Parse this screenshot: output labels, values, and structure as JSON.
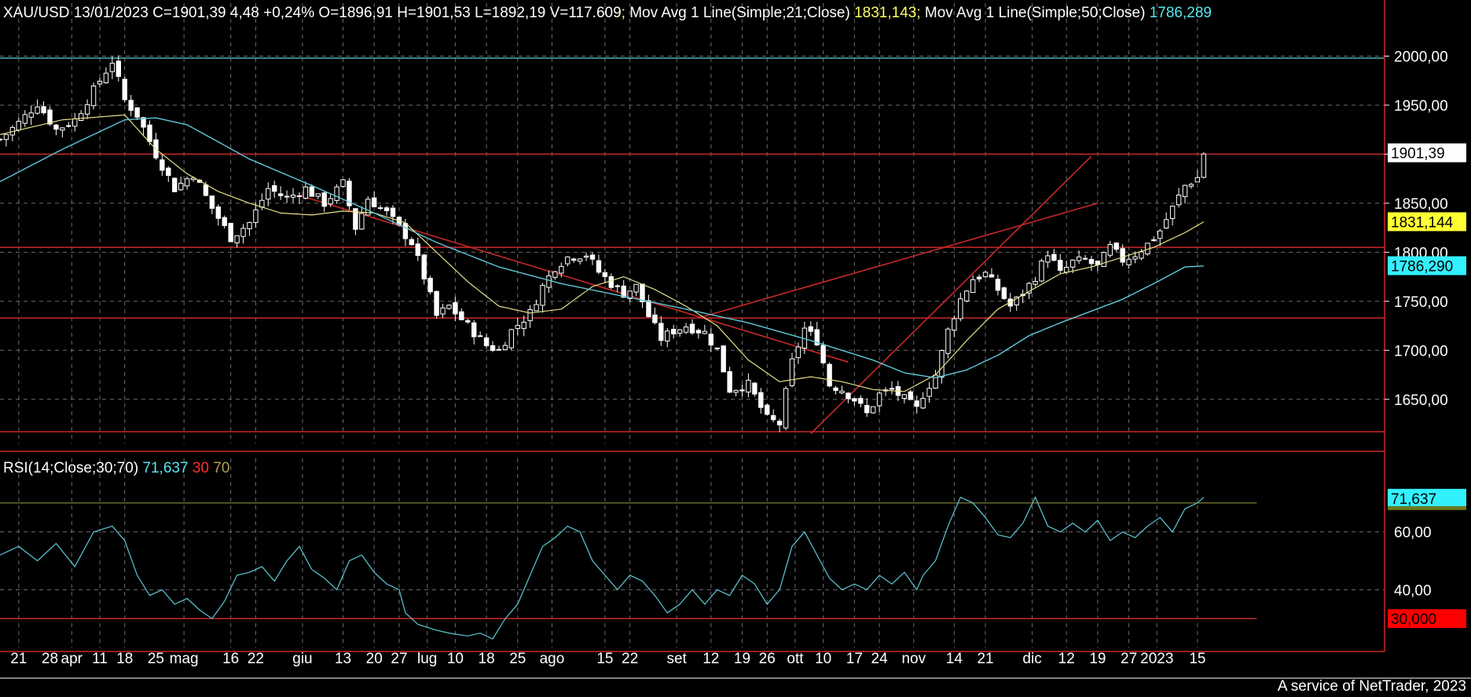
{
  "header": {
    "symbol_text": "XAU/USD 13/01/2023 C=1901,39 4,48 +0,24% O=1896,91 H=1901,53 L=1892,19 V=117.609",
    "sep1": ";",
    "ma21_label": " Mov Avg 1 Line(Simple;21;Close) ",
    "ma21_value": "1831,143",
    "sep2": ";",
    "ma50_label": " Mov Avg 1 Line(Simple;50;Close) ",
    "ma50_value": "1786,289"
  },
  "rsi_header": {
    "label": "RSI(14;Close;30;70) ",
    "value": "71,637",
    "lower": "30",
    "upper": "70"
  },
  "footer": "A service of NetTrader, 2023",
  "colors": {
    "background": "#000000",
    "candle": "#ffffff",
    "ma21": "#e6e08a",
    "ma50": "#5fc8d8",
    "trendline": "#c82828",
    "hline": "#c82828",
    "rsi": "#5fc8d8",
    "grid": "#9a9a9a"
  },
  "price_tags": {
    "close": "1901,39",
    "ma21": "1831,144",
    "ma50": "1786,290",
    "rsi": "71,637",
    "rsi_low": "30,000"
  },
  "chart_data": {
    "type": "candlestick",
    "price_axis": {
      "ylim": [
        1605,
        2030
      ],
      "ticks": [
        1650,
        1700,
        1750,
        1800,
        1850,
        1900,
        1950,
        2000
      ],
      "tick_labels": [
        "1650,00",
        "1700,00",
        "1750,00",
        "1800,00",
        "1850,00",
        "1900,00",
        "1950,00",
        "2000,00"
      ]
    },
    "rsi_axis": {
      "ylim": [
        20,
        80
      ],
      "ticks": [
        40,
        60
      ],
      "tick_labels": [
        "40,00",
        "60,00"
      ]
    },
    "x_axis": {
      "range": [
        0,
        222
      ],
      "labels": [
        {
          "t": 3,
          "label": "21"
        },
        {
          "t": 8,
          "label": "28"
        },
        {
          "t": 11.5,
          "label": "apr"
        },
        {
          "t": 16,
          "label": "11"
        },
        {
          "t": 20,
          "label": "18"
        },
        {
          "t": 25,
          "label": "25"
        },
        {
          "t": 29.5,
          "label": "mag"
        },
        {
          "t": 37,
          "label": "16"
        },
        {
          "t": 41,
          "label": "22"
        },
        {
          "t": 48.5,
          "label": "giu"
        },
        {
          "t": 55,
          "label": "13"
        },
        {
          "t": 60,
          "label": "20"
        },
        {
          "t": 64,
          "label": "27"
        },
        {
          "t": 68.5,
          "label": "lug"
        },
        {
          "t": 73,
          "label": "10"
        },
        {
          "t": 78,
          "label": "18"
        },
        {
          "t": 83,
          "label": "25"
        },
        {
          "t": 88.5,
          "label": "ago"
        },
        {
          "t": 97,
          "label": "15"
        },
        {
          "t": 101,
          "label": "22"
        },
        {
          "t": 108.5,
          "label": "set"
        },
        {
          "t": 114,
          "label": "12"
        },
        {
          "t": 119,
          "label": "19"
        },
        {
          "t": 123,
          "label": "26"
        },
        {
          "t": 127.5,
          "label": "ott"
        },
        {
          "t": 132,
          "label": "10"
        },
        {
          "t": 137,
          "label": "17"
        },
        {
          "t": 141,
          "label": "24"
        },
        {
          "t": 146.5,
          "label": "nov"
        },
        {
          "t": 153,
          "label": "14"
        },
        {
          "t": 158,
          "label": "21"
        },
        {
          "t": 165.5,
          "label": "dic"
        },
        {
          "t": 171,
          "label": "12"
        },
        {
          "t": 176,
          "label": "19"
        },
        {
          "t": 181,
          "label": "27"
        },
        {
          "t": 185.5,
          "label": "2023"
        },
        {
          "t": 192,
          "label": "15"
        }
      ],
      "vgrid": [
        3,
        11.5,
        16,
        20,
        29.5,
        37,
        41,
        48.5,
        55,
        60,
        64,
        68.5,
        73,
        78,
        83,
        88.5,
        97,
        101,
        108.5,
        114,
        119,
        123,
        127.5,
        132,
        137,
        141,
        146.5,
        153,
        158,
        165.5,
        171,
        176,
        181,
        185.5,
        192
      ]
    },
    "price_keypoints": [
      [
        0,
        1915
      ],
      [
        3,
        1932
      ],
      [
        6,
        1952
      ],
      [
        9,
        1925
      ],
      [
        12,
        1935
      ],
      [
        15,
        1965
      ],
      [
        18,
        1995
      ],
      [
        20,
        1955
      ],
      [
        22,
        1940
      ],
      [
        25,
        1900
      ],
      [
        28,
        1865
      ],
      [
        31,
        1880
      ],
      [
        34,
        1845
      ],
      [
        37,
        1815
      ],
      [
        40,
        1830
      ],
      [
        43,
        1865
      ],
      [
        46,
        1855
      ],
      [
        49,
        1865
      ],
      [
        52,
        1850
      ],
      [
        55,
        1870
      ],
      [
        57,
        1825
      ],
      [
        59,
        1855
      ],
      [
        62,
        1840
      ],
      [
        64,
        1825
      ],
      [
        66,
        1810
      ],
      [
        68,
        1775
      ],
      [
        70,
        1735
      ],
      [
        72,
        1745
      ],
      [
        75,
        1725
      ],
      [
        78,
        1705
      ],
      [
        80,
        1700
      ],
      [
        82,
        1720
      ],
      [
        85,
        1738
      ],
      [
        87,
        1765
      ],
      [
        89,
        1785
      ],
      [
        91,
        1795
      ],
      [
        94,
        1798
      ],
      [
        96,
        1780
      ],
      [
        98,
        1768
      ],
      [
        100,
        1758
      ],
      [
        102,
        1765
      ],
      [
        104,
        1735
      ],
      [
        106,
        1712
      ],
      [
        108,
        1720
      ],
      [
        110,
        1725
      ],
      [
        113,
        1718
      ],
      [
        115,
        1700
      ],
      [
        117,
        1660
      ],
      [
        120,
        1665
      ],
      [
        123,
        1630
      ],
      [
        125,
        1625
      ],
      [
        127,
        1688
      ],
      [
        129,
        1722
      ],
      [
        131,
        1710
      ],
      [
        133,
        1665
      ],
      [
        135,
        1660
      ],
      [
        137,
        1650
      ],
      [
        139,
        1635
      ],
      [
        141,
        1655
      ],
      [
        143,
        1660
      ],
      [
        145,
        1650
      ],
      [
        147,
        1640
      ],
      [
        148,
        1655
      ],
      [
        150,
        1675
      ],
      [
        152,
        1720
      ],
      [
        154,
        1752
      ],
      [
        156,
        1773
      ],
      [
        158,
        1778
      ],
      [
        160,
        1762
      ],
      [
        162,
        1745
      ],
      [
        164,
        1758
      ],
      [
        166,
        1775
      ],
      [
        168,
        1800
      ],
      [
        170,
        1778
      ],
      [
        172,
        1790
      ],
      [
        174,
        1792
      ],
      [
        176,
        1785
      ],
      [
        178,
        1805
      ],
      [
        180,
        1792
      ],
      [
        182,
        1798
      ],
      [
        184,
        1808
      ],
      [
        186,
        1822
      ],
      [
        188,
        1845
      ],
      [
        190,
        1868
      ],
      [
        192,
        1876
      ],
      [
        193,
        1901
      ]
    ],
    "ma21_keypoints": [
      [
        0,
        1920
      ],
      [
        10,
        1935
      ],
      [
        20,
        1940
      ],
      [
        25,
        1905
      ],
      [
        30,
        1880
      ],
      [
        35,
        1862
      ],
      [
        40,
        1850
      ],
      [
        45,
        1840
      ],
      [
        50,
        1838
      ],
      [
        55,
        1842
      ],
      [
        60,
        1840
      ],
      [
        65,
        1830
      ],
      [
        70,
        1800
      ],
      [
        75,
        1770
      ],
      [
        80,
        1745
      ],
      [
        85,
        1738
      ],
      [
        90,
        1742
      ],
      [
        95,
        1765
      ],
      [
        100,
        1775
      ],
      [
        105,
        1762
      ],
      [
        110,
        1745
      ],
      [
        115,
        1725
      ],
      [
        120,
        1690
      ],
      [
        125,
        1668
      ],
      [
        130,
        1673
      ],
      [
        135,
        1668
      ],
      [
        140,
        1660
      ],
      [
        145,
        1658
      ],
      [
        150,
        1675
      ],
      [
        155,
        1710
      ],
      [
        160,
        1742
      ],
      [
        165,
        1760
      ],
      [
        170,
        1778
      ],
      [
        175,
        1785
      ],
      [
        180,
        1795
      ],
      [
        185,
        1805
      ],
      [
        190,
        1820
      ],
      [
        193,
        1831
      ]
    ],
    "ma50_keypoints": [
      [
        0,
        1872
      ],
      [
        10,
        1905
      ],
      [
        20,
        1935
      ],
      [
        25,
        1937
      ],
      [
        30,
        1930
      ],
      [
        40,
        1895
      ],
      [
        50,
        1868
      ],
      [
        60,
        1840
      ],
      [
        70,
        1810
      ],
      [
        80,
        1785
      ],
      [
        90,
        1768
      ],
      [
        100,
        1755
      ],
      [
        110,
        1742
      ],
      [
        120,
        1728
      ],
      [
        130,
        1710
      ],
      [
        140,
        1690
      ],
      [
        145,
        1677
      ],
      [
        150,
        1672
      ],
      [
        155,
        1680
      ],
      [
        160,
        1695
      ],
      [
        165,
        1715
      ],
      [
        170,
        1728
      ],
      [
        175,
        1740
      ],
      [
        180,
        1752
      ],
      [
        185,
        1768
      ],
      [
        190,
        1785
      ],
      [
        193,
        1786
      ]
    ],
    "rsi_keypoints": [
      [
        0,
        52
      ],
      [
        3,
        55
      ],
      [
        6,
        50
      ],
      [
        9,
        56
      ],
      [
        12,
        48
      ],
      [
        15,
        60
      ],
      [
        18,
        62
      ],
      [
        20,
        57
      ],
      [
        22,
        45
      ],
      [
        24,
        38
      ],
      [
        26,
        40
      ],
      [
        28,
        35
      ],
      [
        30,
        37
      ],
      [
        32,
        33
      ],
      [
        34,
        30
      ],
      [
        36,
        36
      ],
      [
        38,
        45
      ],
      [
        40,
        46
      ],
      [
        42,
        48
      ],
      [
        44,
        43
      ],
      [
        46,
        50
      ],
      [
        48,
        55
      ],
      [
        50,
        47
      ],
      [
        52,
        44
      ],
      [
        54,
        40
      ],
      [
        56,
        50
      ],
      [
        58,
        52
      ],
      [
        60,
        46
      ],
      [
        62,
        42
      ],
      [
        64,
        40
      ],
      [
        65,
        32
      ],
      [
        67,
        28
      ],
      [
        70,
        26
      ],
      [
        72,
        25
      ],
      [
        75,
        24
      ],
      [
        77,
        25
      ],
      [
        79,
        23
      ],
      [
        81,
        30
      ],
      [
        83,
        35
      ],
      [
        85,
        45
      ],
      [
        87,
        55
      ],
      [
        89,
        58
      ],
      [
        91,
        62
      ],
      [
        93,
        60
      ],
      [
        95,
        50
      ],
      [
        97,
        45
      ],
      [
        99,
        40
      ],
      [
        101,
        45
      ],
      [
        103,
        43
      ],
      [
        105,
        38
      ],
      [
        107,
        32
      ],
      [
        109,
        35
      ],
      [
        111,
        40
      ],
      [
        113,
        35
      ],
      [
        115,
        40
      ],
      [
        117,
        38
      ],
      [
        119,
        45
      ],
      [
        121,
        42
      ],
      [
        123,
        35
      ],
      [
        125,
        40
      ],
      [
        127,
        55
      ],
      [
        129,
        60
      ],
      [
        131,
        52
      ],
      [
        133,
        44
      ],
      [
        135,
        40
      ],
      [
        137,
        42
      ],
      [
        139,
        40
      ],
      [
        141,
        45
      ],
      [
        143,
        42
      ],
      [
        145,
        46
      ],
      [
        147,
        40
      ],
      [
        148,
        45
      ],
      [
        150,
        50
      ],
      [
        152,
        62
      ],
      [
        154,
        72
      ],
      [
        156,
        70
      ],
      [
        158,
        65
      ],
      [
        160,
        59
      ],
      [
        162,
        58
      ],
      [
        164,
        63
      ],
      [
        166,
        72
      ],
      [
        168,
        62
      ],
      [
        170,
        60
      ],
      [
        172,
        63
      ],
      [
        174,
        60
      ],
      [
        176,
        64
      ],
      [
        178,
        57
      ],
      [
        180,
        60
      ],
      [
        182,
        58
      ],
      [
        184,
        62
      ],
      [
        186,
        65
      ],
      [
        188,
        60
      ],
      [
        190,
        68
      ],
      [
        192,
        70
      ],
      [
        193,
        72
      ]
    ],
    "trendlines": [
      {
        "from": [
          48,
          1858
        ],
        "to": [
          136,
          1688
        ]
      },
      {
        "from": [
          112,
          1733
        ],
        "to": [
          176,
          1850
        ]
      },
      {
        "from": [
          130,
          1615
        ],
        "to": [
          175,
          1898
        ]
      }
    ],
    "horizontal_lines": [
      1998,
      1900,
      1805,
      1733,
      1617
    ],
    "rsi_levels": [
      70,
      30
    ]
  }
}
